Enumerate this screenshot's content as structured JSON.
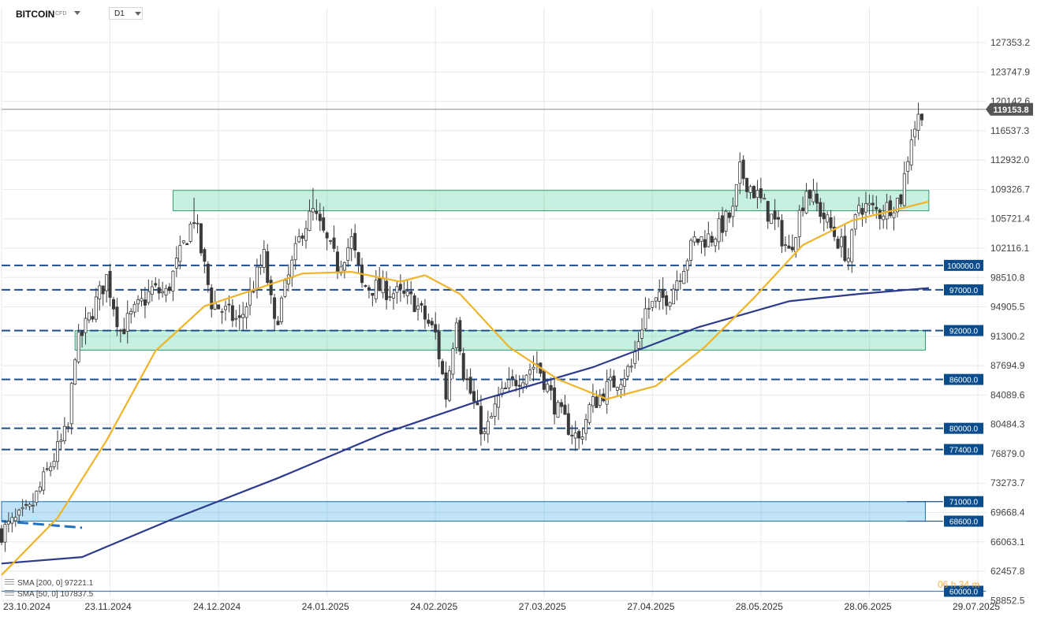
{
  "header": {
    "symbol": "BITCOIN",
    "symbol_sub": "CFD",
    "timeframe": "D1"
  },
  "indicators": {
    "sma200_label": "SMA [200, 0] 97221.1",
    "sma50_label": "SMA [50, 0] 107837.5"
  },
  "countdown": "06 h 34 m",
  "colors": {
    "candle": "#3a3a3a",
    "sma50": "#f0b429",
    "sma200": "#2e3a8c",
    "level_line": "#1f4e8c",
    "level_tag": "#0b4d8c",
    "green_zone": "#4fcf9a",
    "blue_zone": "#3aa8e8",
    "price_tag": "#555555"
  },
  "chart_data": {
    "type": "candlestick",
    "title": "BITCOIN",
    "timeframe": "D1",
    "current_price": 119153.8,
    "current_price_label": "119153.8",
    "x_start": "2024-10-23",
    "x_end": "2025-07-29",
    "y_range": [
      58000,
      129000
    ],
    "x_tick_labels": [
      "23.10.2024",
      "23.11.2024",
      "24.12.2024",
      "24.01.2025",
      "24.02.2025",
      "27.03.2025",
      "27.04.2025",
      "28.05.2025",
      "28.06.2025",
      "29.07.2025"
    ],
    "y_tick_labels": [
      "127353.2",
      "123747.9",
      "120142.6",
      "116537.3",
      "112932.0",
      "109326.7",
      "105721.4",
      "102116.1",
      "98510.8",
      "94905.5",
      "91300.2",
      "87694.9",
      "84089.6",
      "80484.3",
      "76879.0",
      "73273.7",
      "69668.4",
      "66063.1",
      "62457.8",
      "58852.5"
    ],
    "horizontal_levels": [
      {
        "value": 100000,
        "label": "100000.0"
      },
      {
        "value": 97000,
        "label": "97000.0"
      },
      {
        "value": 92000,
        "label": "92000.0"
      },
      {
        "value": 86000,
        "label": "86000.0"
      },
      {
        "value": 80000,
        "label": "80000.0"
      },
      {
        "value": 77400,
        "label": "77400.0"
      },
      {
        "value": 71000,
        "label": "71000.0"
      },
      {
        "value": 68600,
        "label": "68600.0"
      },
      {
        "value": 60000,
        "label": "60000.0"
      }
    ],
    "zones": [
      {
        "name": "resistance",
        "from_date": "2024-12-11",
        "to_date": "2025-07-15",
        "low": 106700,
        "high": 109200,
        "color": "green"
      },
      {
        "name": "support",
        "from_date": "2024-11-13",
        "to_date": "2025-07-14",
        "low": 89600,
        "high": 92000,
        "color": "green"
      },
      {
        "name": "support",
        "from_date": "2024-10-23",
        "to_date": "2025-07-14",
        "low": 68600,
        "high": 71000,
        "color": "blue"
      }
    ],
    "close_path": [
      [
        "2024-10-23",
        67300
      ],
      [
        "2024-10-31",
        69800
      ],
      [
        "2024-11-06",
        75500
      ],
      [
        "2024-11-11",
        80000
      ],
      [
        "2024-11-13",
        89500
      ],
      [
        "2024-11-22",
        98500
      ],
      [
        "2024-11-26",
        92000
      ],
      [
        "2024-12-05",
        97000
      ],
      [
        "2024-12-09",
        96500
      ],
      [
        "2024-12-17",
        106000
      ],
      [
        "2024-12-22",
        95500
      ],
      [
        "2024-12-30",
        93000
      ],
      [
        "2025-01-06",
        101000
      ],
      [
        "2025-01-09",
        92500
      ],
      [
        "2025-01-17",
        104500
      ],
      [
        "2025-01-20",
        106500
      ],
      [
        "2025-01-27",
        100000
      ],
      [
        "2025-01-31",
        103000
      ],
      [
        "2025-02-03",
        97500
      ],
      [
        "2025-02-10",
        97000
      ],
      [
        "2025-02-18",
        95500
      ],
      [
        "2025-02-24",
        91500
      ],
      [
        "2025-02-27",
        84000
      ],
      [
        "2025-03-02",
        94000
      ],
      [
        "2025-03-04",
        87000
      ],
      [
        "2025-03-10",
        79000
      ],
      [
        "2025-03-14",
        83500
      ],
      [
        "2025-03-19",
        86000
      ],
      [
        "2025-03-25",
        88000
      ],
      [
        "2025-03-31",
        82000
      ],
      [
        "2025-04-06",
        78500
      ],
      [
        "2025-04-09",
        82500
      ],
      [
        "2025-04-13",
        84500
      ],
      [
        "2025-04-21",
        87500
      ],
      [
        "2025-04-25",
        94500
      ],
      [
        "2025-05-02",
        96500
      ],
      [
        "2025-05-09",
        103000
      ],
      [
        "2025-05-14",
        103500
      ],
      [
        "2025-05-20",
        106500
      ],
      [
        "2025-05-22",
        111500
      ],
      [
        "2025-05-27",
        108500
      ],
      [
        "2025-06-02",
        104500
      ],
      [
        "2025-06-05",
        101500
      ],
      [
        "2025-06-10",
        109500
      ],
      [
        "2025-06-17",
        104500
      ],
      [
        "2025-06-22",
        101000
      ],
      [
        "2025-06-25",
        107500
      ],
      [
        "2025-07-01",
        106500
      ],
      [
        "2025-07-07",
        108300
      ],
      [
        "2025-07-10",
        116000
      ],
      [
        "2025-07-13",
        119153.8
      ]
    ],
    "spikes": [
      {
        "date": "2024-12-17",
        "high": 108300
      },
      {
        "date": "2025-01-20",
        "high": 109500
      },
      {
        "date": "2025-07-14",
        "high": 123200
      }
    ],
    "sma50_path": [
      [
        "2024-10-23",
        62000
      ],
      [
        "2024-11-08",
        69000
      ],
      [
        "2024-11-22",
        78500
      ],
      [
        "2024-12-06",
        89500
      ],
      [
        "2024-12-20",
        95000
      ],
      [
        "2025-01-03",
        97000
      ],
      [
        "2025-01-17",
        99000
      ],
      [
        "2025-01-31",
        99200
      ],
      [
        "2025-02-14",
        98000
      ],
      [
        "2025-02-21",
        98800
      ],
      [
        "2025-03-03",
        96500
      ],
      [
        "2025-03-17",
        90000
      ],
      [
        "2025-03-31",
        86000
      ],
      [
        "2025-04-14",
        83600
      ],
      [
        "2025-04-28",
        85200
      ],
      [
        "2025-05-12",
        90000
      ],
      [
        "2025-05-26",
        96000
      ],
      [
        "2025-06-09",
        102500
      ],
      [
        "2025-06-23",
        105500
      ],
      [
        "2025-07-15",
        107837.5
      ]
    ],
    "sma200_path": [
      [
        "2024-10-23",
        63400
      ],
      [
        "2024-11-15",
        64200
      ],
      [
        "2024-12-10",
        68700
      ],
      [
        "2025-01-10",
        73900
      ],
      [
        "2025-02-10",
        79500
      ],
      [
        "2025-03-10",
        83600
      ],
      [
        "2025-04-10",
        87500
      ],
      [
        "2025-05-10",
        92400
      ],
      [
        "2025-06-05",
        95600
      ],
      [
        "2025-06-25",
        96500
      ],
      [
        "2025-07-15",
        97221.1
      ]
    ],
    "trendline": {
      "from": [
        "2024-10-23",
        68600
      ],
      "to": [
        "2024-11-15",
        67800
      ]
    },
    "xlabel": "",
    "ylabel": "",
    "grid": true
  }
}
